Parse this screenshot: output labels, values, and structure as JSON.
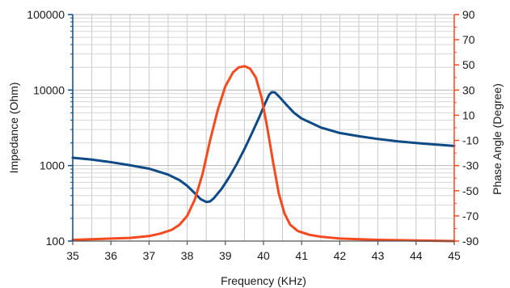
{
  "chart_data": {
    "type": "line",
    "title": "",
    "xlabel": "Frequency (KHz)",
    "ylabel_left": "Impedance (Ohm)",
    "ylabel_right": "Phase Angle (Degree)",
    "xlim": [
      35,
      45
    ],
    "y_left_range": [
      100,
      100000
    ],
    "y_left_scale": "log",
    "y_right_range": [
      -90,
      90
    ],
    "x_ticks": [
      "35",
      "36",
      "37",
      "38",
      "39",
      "40",
      "41",
      "42",
      "43",
      "44",
      "45"
    ],
    "y_left_ticks": [
      "100",
      "1000",
      "10000",
      "100000"
    ],
    "y_right_ticks": [
      "-90",
      "-70",
      "-50",
      "-30",
      "-10",
      "10",
      "30",
      "50",
      "70",
      "90"
    ],
    "grid": true,
    "series": [
      {
        "axis": "left",
        "color": "#0d4a86",
        "x": [
          35,
          35.5,
          36,
          36.5,
          37,
          37.5,
          37.8,
          38,
          38.2,
          38.35,
          38.5,
          38.6,
          38.7,
          38.9,
          39.1,
          39.3,
          39.5,
          39.7,
          39.9,
          40.05,
          40.15,
          40.22,
          40.3,
          40.4,
          40.6,
          40.8,
          41,
          41.5,
          42,
          42.5,
          43,
          43.5,
          44,
          44.5,
          45
        ],
        "values": [
          1270,
          1200,
          1110,
          1010,
          910,
          760,
          640,
          540,
          430,
          360,
          330,
          335,
          370,
          490,
          700,
          1050,
          1650,
          2700,
          4500,
          6800,
          8700,
          9400,
          9300,
          8300,
          6400,
          5000,
          4200,
          3200,
          2700,
          2450,
          2250,
          2100,
          1990,
          1900,
          1820
        ]
      },
      {
        "axis": "right",
        "color": "#f5491f",
        "x": [
          35,
          36,
          36.5,
          37,
          37.3,
          37.6,
          37.8,
          38,
          38.2,
          38.4,
          38.6,
          38.8,
          39,
          39.2,
          39.35,
          39.5,
          39.65,
          39.8,
          39.95,
          40.1,
          40.25,
          40.4,
          40.55,
          40.7,
          40.9,
          41.2,
          41.5,
          42,
          43,
          44,
          45
        ],
        "values": [
          -89,
          -88,
          -87.5,
          -86,
          -84,
          -81,
          -77,
          -70,
          -57,
          -37,
          -10,
          14,
          33,
          44,
          48,
          49,
          47,
          40,
          24,
          0,
          -27,
          -52,
          -68,
          -77,
          -82,
          -85,
          -86.5,
          -88,
          -89,
          -89.5,
          -90
        ]
      }
    ]
  }
}
